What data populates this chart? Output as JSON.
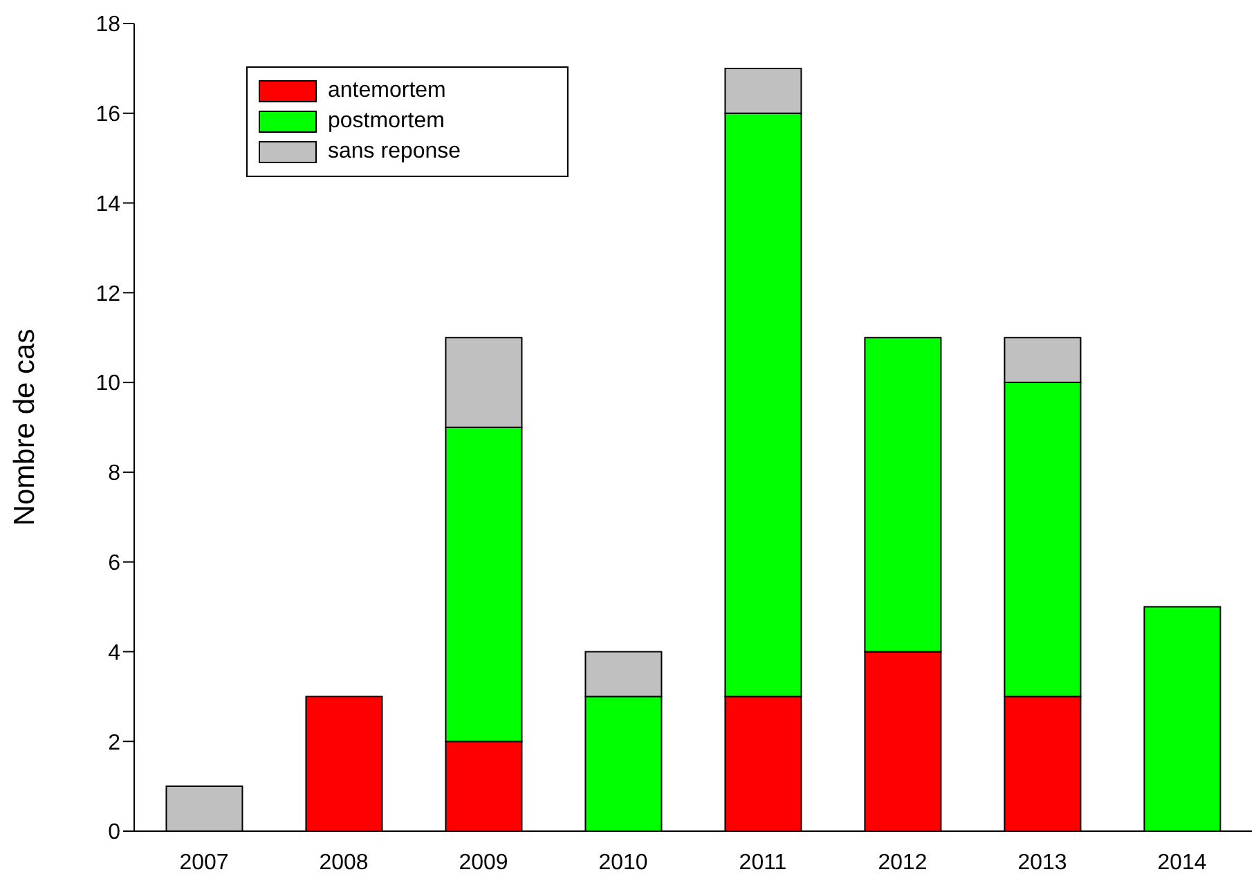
{
  "chart_data": {
    "type": "bar",
    "ylabel": "Nombre de cas",
    "categories": [
      "2007",
      "2008",
      "2009",
      "2010",
      "2011",
      "2012",
      "2013",
      "2014"
    ],
    "stacked": true,
    "ylim": [
      0,
      18
    ],
    "yticks": [
      0,
      2,
      4,
      6,
      8,
      10,
      12,
      14,
      16,
      18
    ],
    "grid": false,
    "legend": "top left",
    "series": [
      {
        "name": "antemortem",
        "color": "#ff0000",
        "values": [
          0,
          3,
          2,
          0,
          3,
          4,
          3,
          0
        ]
      },
      {
        "name": "postmortem",
        "color": "#00ff00",
        "values": [
          0,
          0,
          7,
          3,
          13,
          7,
          7,
          5
        ]
      },
      {
        "name": "sans reponse",
        "color": "#c0c0c0",
        "values": [
          1,
          0,
          2,
          1,
          1,
          0,
          1,
          0
        ]
      }
    ]
  }
}
